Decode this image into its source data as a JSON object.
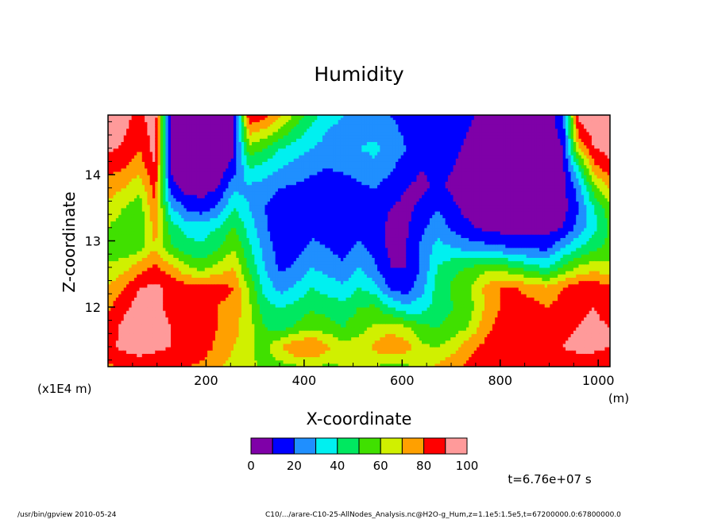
{
  "chart_data": {
    "type": "heatmap",
    "title": "Humidity",
    "xlabel": "X-coordinate",
    "xunit": "(m)",
    "ylabel": "Z-coordinate",
    "yunit": "(x1E4 m)",
    "xlim": [
      0,
      1024
    ],
    "ylim": [
      11.1,
      14.9
    ],
    "x_ticks": [
      200,
      400,
      600,
      800,
      1000
    ],
    "x_tick_labels": [
      "200",
      "400",
      "600",
      "800",
      "1000"
    ],
    "y_ticks": [
      12,
      13,
      14
    ],
    "y_tick_labels": [
      "12",
      "13",
      "14"
    ],
    "colorbar": {
      "boundaries": [
        0,
        10,
        20,
        30,
        40,
        50,
        60,
        70,
        80,
        90,
        100
      ],
      "tick_labels": [
        "0",
        "20",
        "40",
        "60",
        "80",
        "100"
      ],
      "colors": [
        "#7f00a8",
        "#0000ff",
        "#1f8fff",
        "#00f0f0",
        "#00e860",
        "#40e000",
        "#d0f000",
        "#ffa000",
        "#ff0000",
        "#ff9a9a"
      ]
    },
    "x": [
      0,
      32,
      64,
      96,
      128,
      160,
      192,
      224,
      256,
      288,
      320,
      352,
      384,
      416,
      448,
      480,
      512,
      544,
      576,
      608,
      640,
      672,
      704,
      736,
      768,
      800,
      832,
      864,
      896,
      928,
      960,
      992,
      1024
    ],
    "z": [
      11.1,
      11.4,
      11.7,
      12.0,
      12.3,
      12.6,
      12.9,
      13.2,
      13.5,
      13.8,
      14.1,
      14.4,
      14.7,
      14.9
    ],
    "values": [
      [
        78,
        82,
        85,
        84,
        82,
        80,
        78,
        72,
        66,
        62,
        58,
        56,
        58,
        60,
        58,
        60,
        62,
        60,
        56,
        58,
        64,
        72,
        78,
        82,
        84,
        86,
        88,
        86,
        84,
        84,
        86,
        84,
        82
      ],
      [
        88,
        92,
        94,
        92,
        90,
        86,
        84,
        78,
        70,
        62,
        56,
        70,
        80,
        82,
        72,
        64,
        66,
        72,
        80,
        74,
        62,
        60,
        66,
        78,
        82,
        88,
        90,
        90,
        88,
        90,
        92,
        92,
        90
      ],
      [
        86,
        92,
        96,
        94,
        90,
        88,
        84,
        80,
        74,
        64,
        50,
        46,
        52,
        58,
        54,
        50,
        56,
        62,
        66,
        62,
        52,
        50,
        54,
        60,
        76,
        84,
        88,
        88,
        86,
        88,
        90,
        92,
        90
      ],
      [
        78,
        88,
        94,
        92,
        88,
        86,
        82,
        80,
        76,
        62,
        44,
        40,
        44,
        48,
        46,
        44,
        50,
        52,
        40,
        32,
        36,
        44,
        50,
        56,
        70,
        80,
        84,
        84,
        80,
        84,
        88,
        90,
        86
      ],
      [
        70,
        80,
        90,
        92,
        88,
        84,
        82,
        84,
        80,
        58,
        36,
        26,
        32,
        40,
        36,
        32,
        40,
        34,
        18,
        14,
        26,
        44,
        52,
        58,
        72,
        80,
        80,
        76,
        72,
        80,
        86,
        86,
        82
      ],
      [
        62,
        66,
        76,
        82,
        74,
        62,
        56,
        64,
        70,
        48,
        30,
        18,
        22,
        30,
        26,
        22,
        30,
        22,
        10,
        10,
        22,
        40,
        48,
        50,
        56,
        56,
        50,
        44,
        40,
        52,
        62,
        66,
        64
      ],
      [
        56,
        52,
        56,
        70,
        52,
        44,
        42,
        48,
        60,
        42,
        26,
        14,
        16,
        22,
        20,
        16,
        22,
        16,
        8,
        10,
        22,
        34,
        30,
        26,
        24,
        22,
        20,
        18,
        18,
        30,
        40,
        48,
        54
      ],
      [
        60,
        52,
        50,
        74,
        46,
        36,
        36,
        40,
        52,
        36,
        22,
        12,
        14,
        18,
        16,
        14,
        18,
        14,
        8,
        8,
        18,
        26,
        18,
        12,
        8,
        6,
        6,
        6,
        6,
        10,
        24,
        36,
        52
      ],
      [
        68,
        60,
        54,
        80,
        32,
        18,
        14,
        22,
        40,
        30,
        20,
        14,
        14,
        16,
        14,
        12,
        16,
        14,
        10,
        8,
        12,
        20,
        12,
        6,
        4,
        4,
        4,
        4,
        4,
        6,
        20,
        40,
        56
      ],
      [
        74,
        70,
        62,
        84,
        14,
        6,
        6,
        10,
        28,
        28,
        24,
        20,
        18,
        16,
        14,
        14,
        18,
        20,
        14,
        10,
        8,
        12,
        8,
        4,
        4,
        4,
        4,
        4,
        4,
        6,
        24,
        56,
        70
      ],
      [
        84,
        80,
        74,
        90,
        8,
        4,
        4,
        4,
        14,
        40,
        36,
        30,
        26,
        22,
        20,
        22,
        24,
        28,
        22,
        14,
        10,
        12,
        10,
        6,
        4,
        4,
        4,
        4,
        4,
        8,
        40,
        76,
        86
      ],
      [
        92,
        88,
        80,
        94,
        6,
        4,
        4,
        4,
        8,
        56,
        50,
        40,
        34,
        30,
        26,
        28,
        30,
        32,
        26,
        20,
        14,
        14,
        12,
        8,
        4,
        4,
        4,
        4,
        4,
        10,
        70,
        90,
        94
      ],
      [
        97,
        92,
        84,
        96,
        4,
        4,
        4,
        4,
        6,
        76,
        70,
        60,
        48,
        38,
        30,
        28,
        28,
        26,
        22,
        18,
        14,
        16,
        14,
        10,
        6,
        4,
        4,
        4,
        4,
        14,
        86,
        96,
        98
      ],
      [
        98,
        94,
        86,
        98,
        4,
        4,
        4,
        4,
        6,
        88,
        84,
        72,
        56,
        44,
        34,
        30,
        28,
        24,
        20,
        18,
        14,
        16,
        16,
        12,
        6,
        4,
        4,
        4,
        4,
        18,
        92,
        98,
        99
      ]
    ]
  },
  "footer": {
    "time_label": "t=6.76e+07 s",
    "program_label": "/usr/bin/gpview   2010-05-24",
    "source_label": "C10/.../arare-C10-25-AllNodes_Analysis.nc@H2O-g_Hum,z=1.1e5:1.5e5,t=67200000.0:67800000.0"
  }
}
